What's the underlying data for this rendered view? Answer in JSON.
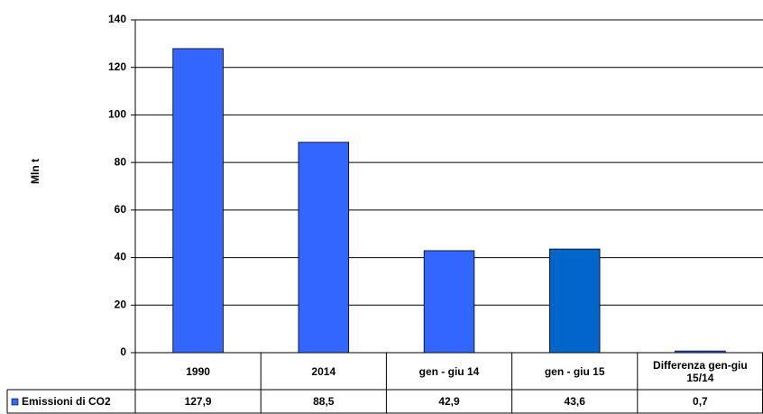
{
  "chart_data": {
    "type": "bar",
    "y_label": "Mln t",
    "categories": [
      "1990",
      "2014",
      "gen - giu 14",
      "gen - giu 15",
      "Differenza gen-giu 15/14"
    ],
    "series": [
      {
        "name": "Emissioni di CO2",
        "color": "#3366ff",
        "colors": [
          "#3366ff",
          "#3366ff",
          "#3366ff",
          "#0066cc",
          "#3366ff"
        ],
        "values": [
          127.9,
          88.5,
          42.9,
          43.6,
          0.7
        ],
        "value_labels": [
          "127,9",
          "88,5",
          "42,9",
          "43,6",
          "0,7"
        ]
      }
    ],
    "ylim": [
      0,
      140
    ],
    "yticks": [
      0,
      20,
      40,
      60,
      80,
      100,
      120,
      140
    ],
    "grid": true
  }
}
